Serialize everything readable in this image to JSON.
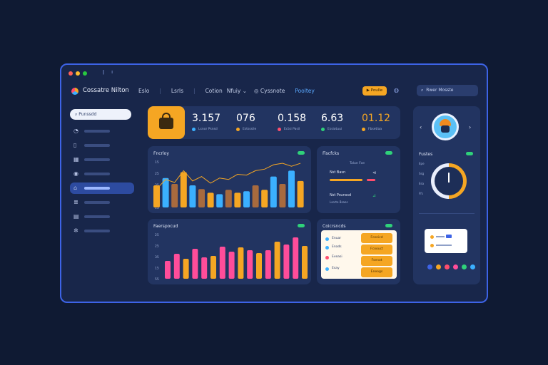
{
  "window": {
    "dot_colors": [
      "#ff5f57",
      "#febc2e",
      "#28c840"
    ],
    "icons": [
      "edit-icon",
      "info-icon"
    ]
  },
  "header": {
    "brand": "Cossatre Nilton",
    "nav": [
      "Eslo",
      "Lsrls",
      "Cotion",
      "Nfuiy",
      "Cyssnote",
      "Pooltey"
    ],
    "action_button": "Poulle",
    "search_placeholder": "Rwer Mosste"
  },
  "sidebar": {
    "search_placeholder": "Punssdd",
    "items": [
      "chart-icon",
      "bookmark-icon",
      "grid-icon",
      "globe-icon",
      "home-icon",
      "stack-icon",
      "layout-icon",
      "settings-icon"
    ],
    "active_index": 4
  },
  "stats": [
    {
      "value": "3.157",
      "label": "Lsnor Psnsd",
      "color": "#3bb0ff"
    },
    {
      "value": "076",
      "label": "Estsssile",
      "color": "#f5a623"
    },
    {
      "value": "0.158",
      "label": "Ectsi Pasil",
      "color": "#ff4d6d"
    },
    {
      "value": "6.63",
      "label": "Essiotuui",
      "color": "#2fd17a"
    },
    {
      "value": "01.12",
      "label": "Fbsetlaa",
      "color": "#f5a623",
      "highlight": true
    }
  ],
  "cards": {
    "bar_top": {
      "title": "Fncrloy",
      "ticks": [
        "15",
        "25",
        "35",
        "15",
        "15"
      ],
      "values": [
        30,
        40,
        32,
        48,
        30,
        25,
        20,
        18,
        24,
        20,
        22,
        30,
        24,
        42,
        32,
        50,
        36
      ],
      "colors": [
        "#f5a623",
        "#3bb0ff",
        "#a86a3e",
        "#f5a623",
        "#3bb0ff",
        "#a86a3e",
        "#f5a623",
        "#3bb0ff",
        "#a86a3e",
        "#f5a623",
        "#3bb0ff",
        "#a86a3e",
        "#f5a623",
        "#3bb0ff",
        "#a86a3e",
        "#3bb0ff",
        "#f5a623"
      ],
      "line": [
        25,
        38,
        34,
        50,
        36,
        42,
        33,
        40,
        38,
        45,
        44,
        50,
        52,
        58,
        60,
        56,
        60
      ]
    },
    "mini": {
      "title": "Fiscfcks",
      "subtitle": "Talue Foe",
      "row1": "Nst Basn",
      "row2": "Nst Psunssd",
      "row2_sub": "Lsorte Bsaes"
    },
    "bar_bottom": {
      "title": "Faerspocud",
      "ticks": [
        "25",
        "25",
        "35",
        "15",
        "55"
      ],
      "values": [
        25,
        35,
        28,
        42,
        30,
        32,
        45,
        38,
        44,
        40,
        36,
        40,
        52,
        48,
        58,
        46
      ],
      "colors": [
        "#ff4d9a",
        "#ff4d9a",
        "#f5a623",
        "#ff4d9a",
        "#ff4d9a",
        "#f5a623",
        "#ff4d9a",
        "#ff4d9a",
        "#f5a623",
        "#ff4d9a",
        "#f5a623",
        "#ff4d9a",
        "#f5a623",
        "#ff4d9a",
        "#ff4d9a",
        "#f5a623"
      ]
    },
    "list": {
      "title": "Coicrsncds",
      "rows": [
        {
          "label": "Enuar",
          "button": "Fcenicd",
          "color": "#3bb0ff"
        },
        {
          "label": "Enads",
          "button": "Fcoouct",
          "color": "#3bb0ff"
        },
        {
          "label": "Eveasi",
          "button": "Fsenot",
          "color": "#ff4d6d"
        },
        {
          "label": "Esay",
          "button": "Eneogs",
          "color": "#3bb0ff"
        }
      ]
    },
    "right": {
      "title": "Fustes",
      "ticks": [
        "Epe",
        "Ssg",
        "Esa",
        "Ffs"
      ],
      "swatches": [
        "#3d63e6",
        "#f5a623",
        "#ff4d6d",
        "#ff4d9a",
        "#2fd17a",
        "#3bb0ff"
      ]
    }
  }
}
